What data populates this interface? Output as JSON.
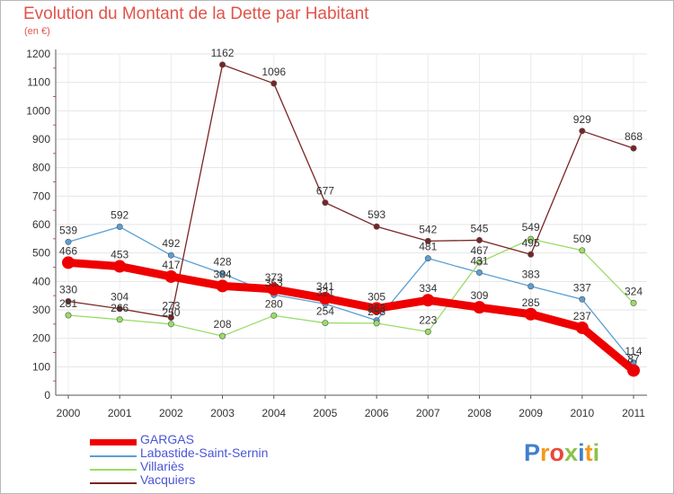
{
  "header": {
    "title": "Evolution du Montant de la Dette par Habitant",
    "subtitle": "(en €)"
  },
  "logo": {
    "text": "Proxiti",
    "letters": [
      "P",
      "r",
      "o",
      "x",
      "i",
      "t",
      "i"
    ],
    "colors": [
      "#3f7fcf",
      "#f39a1d",
      "#e8483a",
      "#8bc34a",
      "#3f7fcf",
      "#f39a1d",
      "#8bc34a"
    ]
  },
  "chart_data": {
    "type": "line",
    "title": "Evolution du Montant de la Dette par Habitant",
    "subtitle": "(en €)",
    "categories": [
      "2000",
      "2001",
      "2002",
      "2003",
      "2004",
      "2005",
      "2006",
      "2007",
      "2008",
      "2009",
      "2010",
      "2011"
    ],
    "ylim": [
      0,
      1200
    ],
    "yticks": [
      0,
      100,
      200,
      300,
      400,
      500,
      600,
      700,
      800,
      900,
      1000,
      1100,
      1200
    ],
    "grid": true,
    "legend_position": "bottom-left",
    "series": [
      {
        "name": "GARGAS",
        "color": "#ee0000",
        "values": [
          466,
          453,
          417,
          384,
          373,
          341,
          305,
          334,
          309,
          285,
          237,
          87
        ]
      },
      {
        "name": "Labastide-Saint-Sernin",
        "color": "#5a9fd4",
        "values": [
          539,
          592,
          492,
          428,
          353,
          321,
          263,
          481,
          431,
          383,
          337,
          114
        ]
      },
      {
        "name": "Villariès",
        "color": "#99dd66",
        "values": [
          281,
          266,
          250,
          208,
          280,
          254,
          253,
          223,
          467,
          549,
          509,
          324
        ]
      },
      {
        "name": "Vacquiers",
        "color": "#7a2424",
        "values": [
          330,
          304,
          273,
          1162,
          1096,
          677,
          593,
          542,
          545,
          495,
          929,
          868
        ]
      }
    ]
  }
}
